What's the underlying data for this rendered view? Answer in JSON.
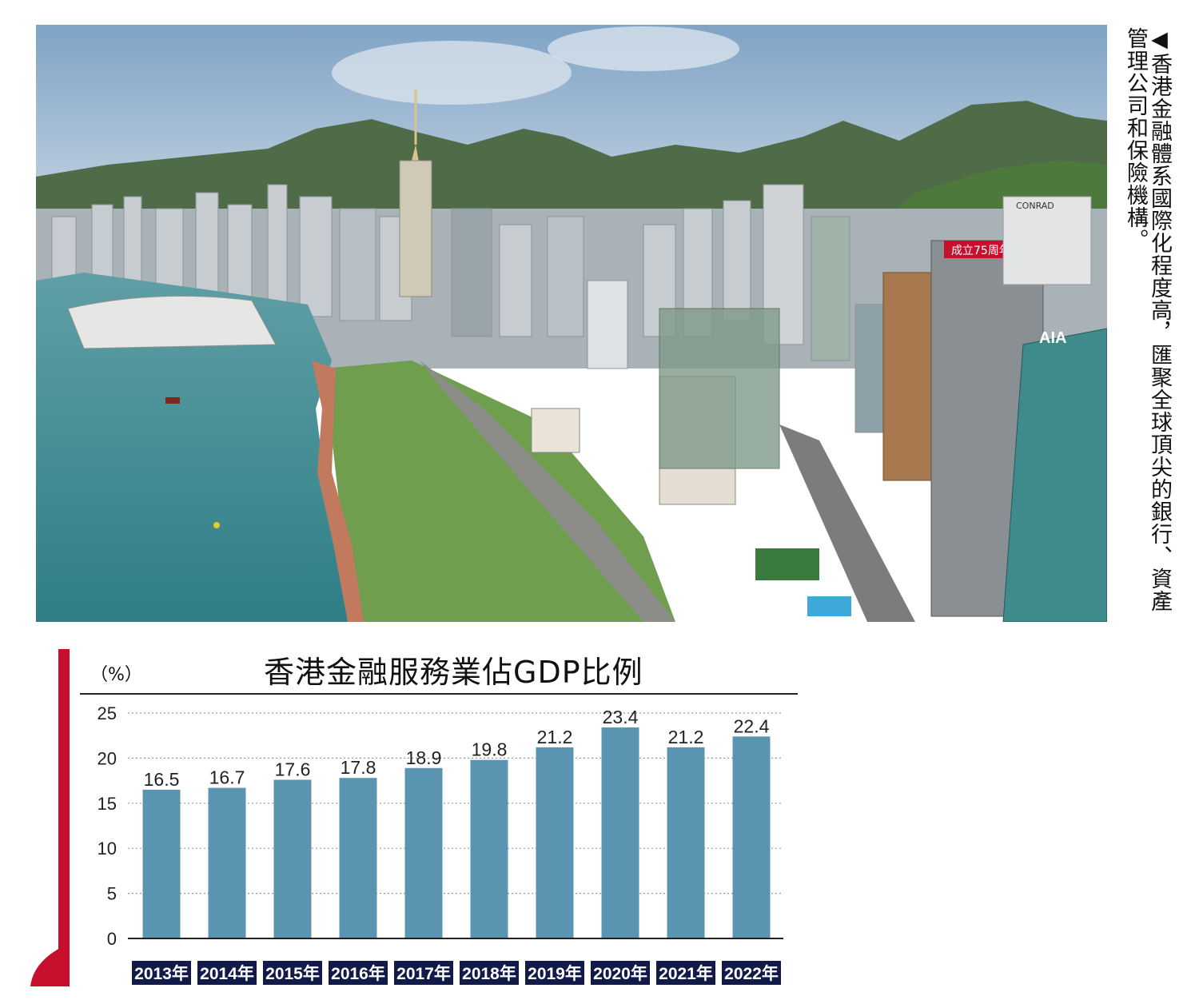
{
  "caption": {
    "arrow": "◀",
    "text": "香港金融體系國際化程度高，匯聚全球頂尖的銀行、資產管理公司和保險機構。"
  },
  "photo": {
    "signs": [
      "CONRAD",
      "成立75周年",
      "AIA"
    ]
  },
  "colors": {
    "bar": "#5a94b0",
    "label_bg": "#121a4a",
    "accent": "#c8102e",
    "grid": "#9a9a9a"
  },
  "chart_data": {
    "type": "bar",
    "title": "香港金融服務業佔GDP比例",
    "ylabel": "（%）",
    "xlabel": "",
    "categories": [
      "2013年",
      "2014年",
      "2015年",
      "2016年",
      "2017年",
      "2018年",
      "2019年",
      "2020年",
      "2021年",
      "2022年"
    ],
    "values": [
      16.5,
      16.7,
      17.6,
      17.8,
      18.9,
      19.8,
      21.2,
      23.4,
      21.2,
      22.4
    ],
    "ylim": [
      0,
      25
    ],
    "yticks": [
      0,
      5,
      10,
      15,
      20,
      25
    ],
    "grid": "dotted horizontal",
    "legend": "none"
  }
}
